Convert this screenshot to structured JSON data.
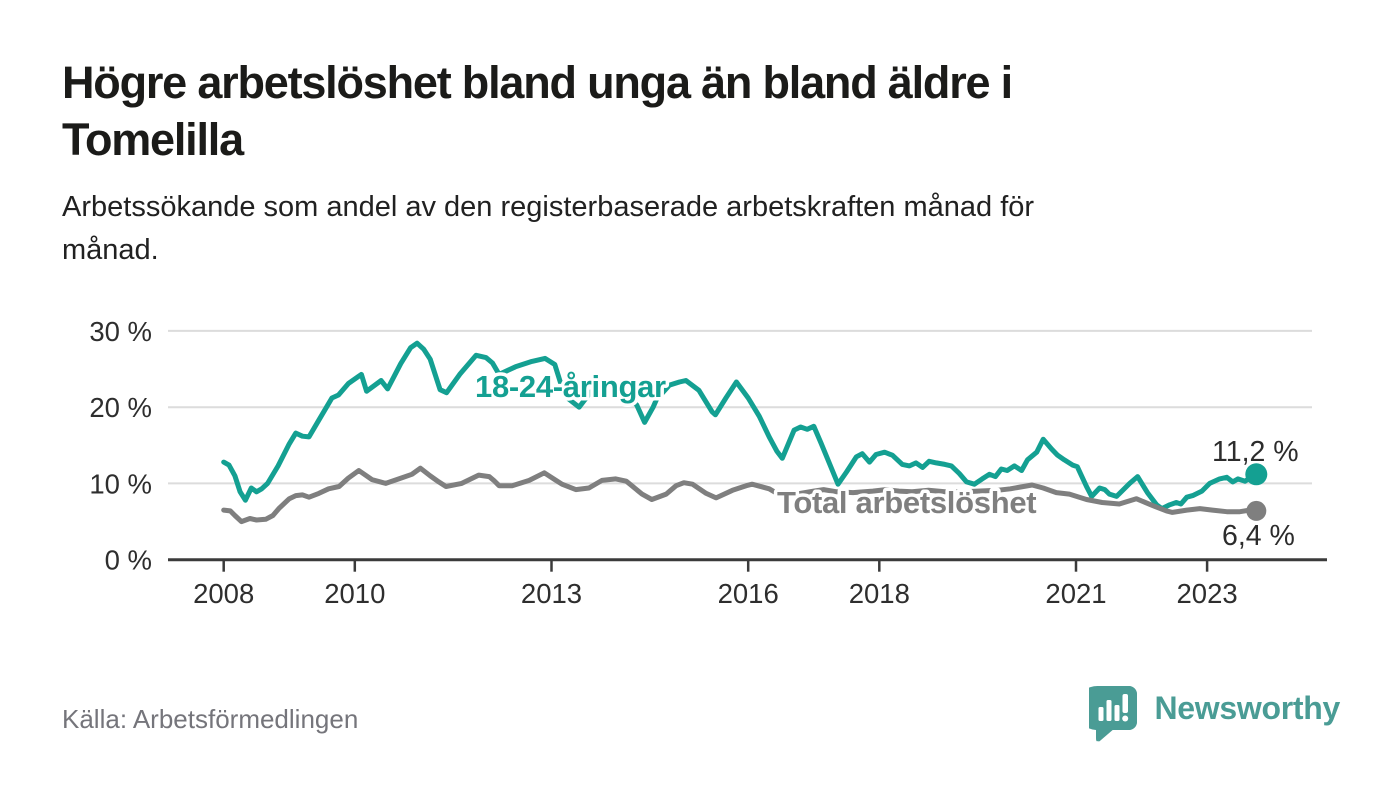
{
  "header": {
    "title_lines": [
      "Högre arbetslöshet bland unga än bland äldre i",
      "Tomelilla"
    ],
    "subtitle_lines": [
      "Arbetssökande som andel av den registerbaserade arbetskraften månad för",
      "månad."
    ]
  },
  "footer": {
    "source": "Källa: Arbetsförmedlingen",
    "brand": "Newsworthy"
  },
  "colors": {
    "series_young": "#14a092",
    "series_total": "#7f7f7f",
    "logo_teal": "#4a9c95",
    "grid": "#dcdcdc",
    "axis": "#3b3b3b",
    "axis_text": "#2e2e2e"
  },
  "chart_data": {
    "type": "line",
    "title": "Högre arbetslöshet bland unga än bland äldre i Tomelilla",
    "subtitle": "Arbetssökande som andel av den registerbaserade arbetskraften månad för månad.",
    "xlim": [
      2007.15,
      2024.6
    ],
    "ylim": [
      0,
      30
    ],
    "x_ticks": [
      2008,
      2010,
      2013,
      2016,
      2018,
      2021,
      2023
    ],
    "y_ticks": [
      0,
      10,
      20,
      30
    ],
    "y_tick_suffix": " %",
    "grid": true,
    "legend_position": "inline-labels",
    "series": [
      {
        "id": "young",
        "label": "18-24-åringar",
        "end_label": "11,2 %",
        "color_key": "series_young",
        "points": [
          [
            2008.0,
            12.8
          ],
          [
            2008.08,
            12.4
          ],
          [
            2008.17,
            11.0
          ],
          [
            2008.25,
            8.9
          ],
          [
            2008.33,
            7.8
          ],
          [
            2008.42,
            9.4
          ],
          [
            2008.5,
            8.9
          ],
          [
            2008.58,
            9.3
          ],
          [
            2008.67,
            10.0
          ],
          [
            2008.83,
            12.3
          ],
          [
            2009.0,
            15.2
          ],
          [
            2009.1,
            16.6
          ],
          [
            2009.2,
            16.2
          ],
          [
            2009.3,
            16.1
          ],
          [
            2009.45,
            18.3
          ],
          [
            2009.65,
            21.2
          ],
          [
            2009.75,
            21.6
          ],
          [
            2009.9,
            23.1
          ],
          [
            2010.05,
            24.0
          ],
          [
            2010.1,
            24.3
          ],
          [
            2010.18,
            22.1
          ],
          [
            2010.4,
            23.5
          ],
          [
            2010.5,
            22.4
          ],
          [
            2010.7,
            25.7
          ],
          [
            2010.85,
            27.8
          ],
          [
            2010.95,
            28.4
          ],
          [
            2011.05,
            27.6
          ],
          [
            2011.15,
            26.3
          ],
          [
            2011.3,
            22.3
          ],
          [
            2011.4,
            21.9
          ],
          [
            2011.6,
            24.3
          ],
          [
            2011.85,
            26.8
          ],
          [
            2012.0,
            26.5
          ],
          [
            2012.1,
            25.8
          ],
          [
            2012.2,
            24.3
          ],
          [
            2012.45,
            25.3
          ],
          [
            2012.7,
            26.0
          ],
          [
            2012.9,
            26.4
          ],
          [
            2013.05,
            25.6
          ],
          [
            2013.2,
            21.5
          ],
          [
            2013.42,
            20.0
          ],
          [
            2013.6,
            22.0
          ],
          [
            2013.85,
            22.6
          ],
          [
            2014.05,
            22.4
          ],
          [
            2014.2,
            21.0
          ],
          [
            2014.3,
            20.3
          ],
          [
            2014.42,
            18.0
          ],
          [
            2014.55,
            20.0
          ],
          [
            2014.6,
            21.0
          ],
          [
            2014.8,
            22.9
          ],
          [
            2014.95,
            23.3
          ],
          [
            2015.05,
            23.5
          ],
          [
            2015.25,
            22.2
          ],
          [
            2015.45,
            19.4
          ],
          [
            2015.5,
            19.0
          ],
          [
            2015.66,
            21.2
          ],
          [
            2015.82,
            23.3
          ],
          [
            2016.0,
            21.2
          ],
          [
            2016.17,
            18.8
          ],
          [
            2016.32,
            16.1
          ],
          [
            2016.44,
            14.2
          ],
          [
            2016.52,
            13.3
          ],
          [
            2016.7,
            17.0
          ],
          [
            2016.8,
            17.4
          ],
          [
            2016.9,
            17.1
          ],
          [
            2017.0,
            17.5
          ],
          [
            2017.11,
            15.3
          ],
          [
            2017.24,
            12.6
          ],
          [
            2017.37,
            9.9
          ],
          [
            2017.5,
            11.5
          ],
          [
            2017.65,
            13.5
          ],
          [
            2017.74,
            13.9
          ],
          [
            2017.85,
            12.8
          ],
          [
            2017.95,
            13.8
          ],
          [
            2018.08,
            14.1
          ],
          [
            2018.2,
            13.7
          ],
          [
            2018.35,
            12.5
          ],
          [
            2018.46,
            12.3
          ],
          [
            2018.56,
            12.7
          ],
          [
            2018.66,
            12.1
          ],
          [
            2018.76,
            12.9
          ],
          [
            2018.87,
            12.7
          ],
          [
            2019.0,
            12.5
          ],
          [
            2019.1,
            12.3
          ],
          [
            2019.22,
            11.3
          ],
          [
            2019.33,
            10.2
          ],
          [
            2019.45,
            9.9
          ],
          [
            2019.57,
            10.6
          ],
          [
            2019.68,
            11.2
          ],
          [
            2019.77,
            10.9
          ],
          [
            2019.86,
            11.9
          ],
          [
            2019.95,
            11.7
          ],
          [
            2020.06,
            12.3
          ],
          [
            2020.17,
            11.7
          ],
          [
            2020.26,
            13.1
          ],
          [
            2020.4,
            14.1
          ],
          [
            2020.5,
            15.8
          ],
          [
            2020.63,
            14.5
          ],
          [
            2020.72,
            13.7
          ],
          [
            2020.82,
            13.1
          ],
          [
            2020.95,
            12.4
          ],
          [
            2021.02,
            12.2
          ],
          [
            2021.16,
            9.6
          ],
          [
            2021.24,
            8.3
          ],
          [
            2021.36,
            9.4
          ],
          [
            2021.44,
            9.2
          ],
          [
            2021.51,
            8.6
          ],
          [
            2021.62,
            8.3
          ],
          [
            2021.82,
            10.0
          ],
          [
            2021.94,
            10.9
          ],
          [
            2022.09,
            8.8
          ],
          [
            2022.23,
            7.2
          ],
          [
            2022.31,
            6.7
          ],
          [
            2022.43,
            7.2
          ],
          [
            2022.53,
            7.5
          ],
          [
            2022.6,
            7.3
          ],
          [
            2022.69,
            8.2
          ],
          [
            2022.78,
            8.4
          ],
          [
            2022.92,
            9.0
          ],
          [
            2023.04,
            10.0
          ],
          [
            2023.19,
            10.6
          ],
          [
            2023.3,
            10.8
          ],
          [
            2023.39,
            10.2
          ],
          [
            2023.47,
            10.6
          ],
          [
            2023.58,
            10.3
          ],
          [
            2023.7,
            11.0
          ],
          [
            2023.75,
            11.2
          ]
        ]
      },
      {
        "id": "total",
        "label": "Total arbetslöshet",
        "end_label": "6,4 %",
        "color_key": "series_total",
        "points": [
          [
            2008.0,
            6.5
          ],
          [
            2008.1,
            6.4
          ],
          [
            2008.17,
            5.8
          ],
          [
            2008.27,
            5.0
          ],
          [
            2008.4,
            5.4
          ],
          [
            2008.5,
            5.2
          ],
          [
            2008.64,
            5.3
          ],
          [
            2008.75,
            5.8
          ],
          [
            2008.84,
            6.7
          ],
          [
            2009.0,
            8.0
          ],
          [
            2009.1,
            8.4
          ],
          [
            2009.2,
            8.5
          ],
          [
            2009.3,
            8.2
          ],
          [
            2009.45,
            8.7
          ],
          [
            2009.6,
            9.3
          ],
          [
            2009.76,
            9.6
          ],
          [
            2009.9,
            10.7
          ],
          [
            2010.06,
            11.7
          ],
          [
            2010.26,
            10.5
          ],
          [
            2010.47,
            10.0
          ],
          [
            2010.67,
            10.6
          ],
          [
            2010.87,
            11.2
          ],
          [
            2011.0,
            12.0
          ],
          [
            2011.15,
            11.0
          ],
          [
            2011.28,
            10.2
          ],
          [
            2011.39,
            9.6
          ],
          [
            2011.63,
            10.0
          ],
          [
            2011.89,
            11.1
          ],
          [
            2012.05,
            10.9
          ],
          [
            2012.12,
            10.4
          ],
          [
            2012.2,
            9.7
          ],
          [
            2012.4,
            9.7
          ],
          [
            2012.66,
            10.4
          ],
          [
            2012.89,
            11.4
          ],
          [
            2013.05,
            10.5
          ],
          [
            2013.16,
            9.9
          ],
          [
            2013.37,
            9.2
          ],
          [
            2013.57,
            9.4
          ],
          [
            2013.77,
            10.4
          ],
          [
            2013.98,
            10.6
          ],
          [
            2014.14,
            10.3
          ],
          [
            2014.38,
            8.6
          ],
          [
            2014.53,
            7.9
          ],
          [
            2014.75,
            8.6
          ],
          [
            2014.9,
            9.7
          ],
          [
            2015.02,
            10.1
          ],
          [
            2015.15,
            9.9
          ],
          [
            2015.36,
            8.7
          ],
          [
            2015.51,
            8.1
          ],
          [
            2015.76,
            9.1
          ],
          [
            2015.97,
            9.7
          ],
          [
            2016.06,
            9.9
          ],
          [
            2016.32,
            9.3
          ],
          [
            2016.44,
            8.7
          ],
          [
            2016.6,
            8.5
          ],
          [
            2016.8,
            8.7
          ],
          [
            2017.0,
            9.0
          ],
          [
            2017.15,
            9.2
          ],
          [
            2017.35,
            8.9
          ],
          [
            2017.6,
            8.8
          ],
          [
            2017.9,
            9.0
          ],
          [
            2018.1,
            9.2
          ],
          [
            2018.3,
            9.0
          ],
          [
            2018.5,
            8.9
          ],
          [
            2018.75,
            9.1
          ],
          [
            2019.0,
            8.9
          ],
          [
            2019.3,
            8.9
          ],
          [
            2019.5,
            9.0
          ],
          [
            2019.8,
            9.1
          ],
          [
            2020.0,
            9.3
          ],
          [
            2020.2,
            9.6
          ],
          [
            2020.33,
            9.8
          ],
          [
            2020.5,
            9.4
          ],
          [
            2020.7,
            8.8
          ],
          [
            2020.9,
            8.6
          ],
          [
            2021.16,
            7.9
          ],
          [
            2021.4,
            7.5
          ],
          [
            2021.66,
            7.3
          ],
          [
            2021.92,
            8.0
          ],
          [
            2022.17,
            7.1
          ],
          [
            2022.38,
            6.4
          ],
          [
            2022.47,
            6.2
          ],
          [
            2022.69,
            6.5
          ],
          [
            2022.89,
            6.7
          ],
          [
            2023.08,
            6.5
          ],
          [
            2023.3,
            6.3
          ],
          [
            2023.5,
            6.3
          ],
          [
            2023.65,
            6.5
          ],
          [
            2023.75,
            6.4
          ]
        ]
      }
    ]
  }
}
